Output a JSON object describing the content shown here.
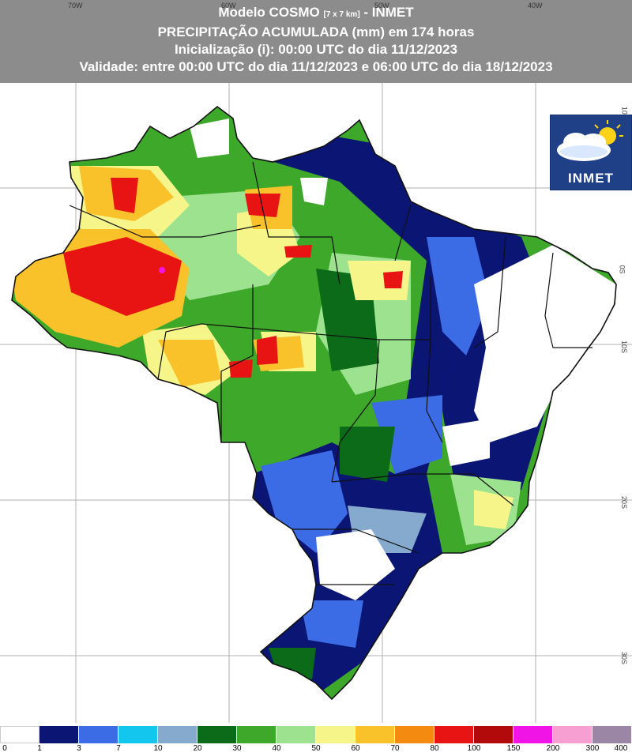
{
  "header": {
    "title_main": "Modelo COSMO",
    "title_grid": "[7 x 7 km]",
    "title_source": "- INMET",
    "subtitle": "PRECIPITAÇÃO ACUMULADA (mm) em 174 horas",
    "init": "Inicialização (i): 00:00 UTC do dia 11/12/2023",
    "validity": "Validade: entre 00:00 UTC do dia 11/12/2023 e 06:00 UTC do dia 18/12/2023"
  },
  "longitude_labels": [
    "70W",
    "60W",
    "50W",
    "40W"
  ],
  "latitude_labels": [
    "10N",
    "0S",
    "10S",
    "20S",
    "30S"
  ],
  "logo": {
    "text": "INMET",
    "icon": "cloud-sun-icon"
  },
  "legend": {
    "ticks": [
      "0",
      "1",
      "3",
      "7",
      "10",
      "20",
      "30",
      "40",
      "50",
      "60",
      "70",
      "80",
      "100",
      "150",
      "200",
      "300",
      "400"
    ],
    "colors": [
      "#ffffff",
      "#0b1574",
      "#3c6be6",
      "#12c6ee",
      "#86aacd",
      "#0b6b18",
      "#3da82a",
      "#9de38f",
      "#f6f58a",
      "#f9c22a",
      "#f58a10",
      "#e81414",
      "#b20a0a",
      "#f014e6",
      "#f79ed2",
      "#9b86a6"
    ]
  },
  "palette": {
    "white": "#ffffff",
    "navy": "#0b1574",
    "blue": "#3c6be6",
    "gray_blue": "#86aacd",
    "dark_green": "#0b6b18",
    "green": "#3da82a",
    "light_green": "#9de38f",
    "yellow": "#f6f58a",
    "orange_yellow": "#f9c22a",
    "orange": "#f58a10",
    "red": "#e81414"
  }
}
